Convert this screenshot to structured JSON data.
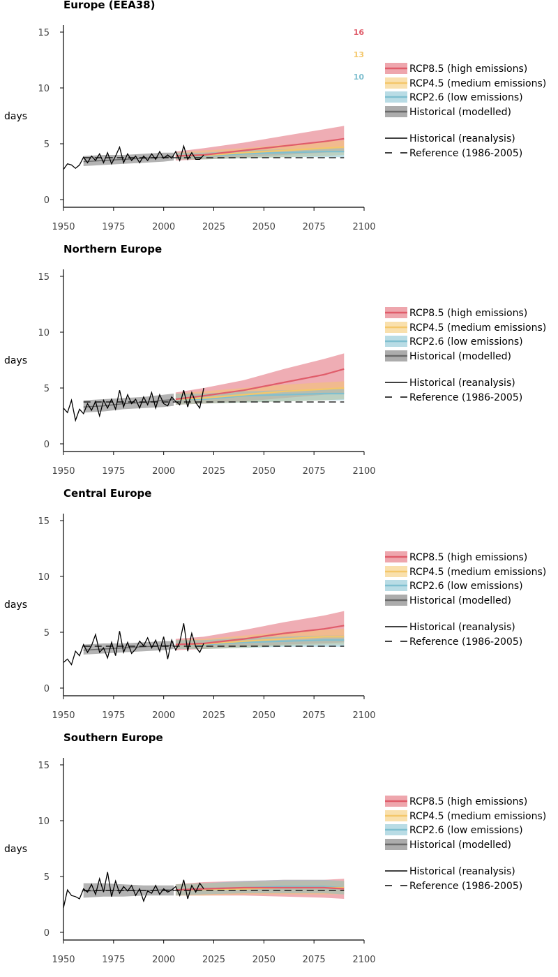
{
  "colors": {
    "rcp85": "#e05c6a",
    "rcp45": "#f4c76a",
    "rcp26": "#7fbfcf",
    "historical_model": "#808080",
    "reanalysis": "#000000"
  },
  "annotations": [
    {
      "text": "16",
      "color": "#e05c6a"
    },
    {
      "text": "13",
      "color": "#f4c76a"
    },
    {
      "text": "10",
      "color": "#7fbfcf"
    }
  ],
  "legend": [
    {
      "key": "rcp85",
      "label": "RCP8.5 (high emissions)",
      "kind": "band"
    },
    {
      "key": "rcp45",
      "label": "RCP4.5 (medium emissions)",
      "kind": "band"
    },
    {
      "key": "rcp26",
      "label": "RCP2.6 (low emissions)",
      "kind": "band"
    },
    {
      "key": "historical_model",
      "label": "Historical (modelled)",
      "kind": "band"
    },
    {
      "key": "reanalysis",
      "label": "Historical (reanalysis)",
      "kind": "line"
    },
    {
      "key": "reference",
      "label": "Reference (1986-2005)",
      "kind": "dash"
    }
  ],
  "chart_data": [
    {
      "type": "line",
      "title": "Europe (EEA38)",
      "ylabel": "days",
      "xlim": [
        1950,
        2100
      ],
      "ylim": [
        0,
        15
      ],
      "xticks": [
        "1950",
        "1975",
        "2000",
        "2025",
        "2050",
        "2075",
        "2100"
      ],
      "yticks": [
        "0",
        "5",
        "10",
        "15"
      ],
      "reference": 3.75,
      "historical_model": {
        "x": [
          1960,
          1970,
          1980,
          1990,
          2000,
          2005
        ],
        "mean": [
          3.4,
          3.5,
          3.6,
          3.7,
          3.8,
          3.85
        ],
        "low": [
          3.0,
          3.1,
          3.2,
          3.3,
          3.4,
          3.5
        ],
        "high": [
          3.9,
          4.0,
          4.0,
          4.1,
          4.2,
          4.2
        ]
      },
      "projections": [
        {
          "key": "rcp85",
          "x": [
            2006,
            2020,
            2040,
            2060,
            2080,
            2090
          ],
          "mean": [
            3.9,
            4.0,
            4.4,
            4.8,
            5.2,
            5.45
          ],
          "low": [
            3.5,
            3.6,
            3.8,
            4.0,
            4.2,
            4.3
          ],
          "high": [
            4.3,
            4.6,
            5.1,
            5.7,
            6.3,
            6.6
          ]
        },
        {
          "key": "rcp45",
          "x": [
            2006,
            2020,
            2040,
            2060,
            2080,
            2090
          ],
          "mean": [
            3.9,
            3.95,
            4.2,
            4.4,
            4.6,
            4.7
          ],
          "low": [
            3.6,
            3.6,
            3.7,
            3.8,
            3.9,
            4.0
          ],
          "high": [
            4.2,
            4.4,
            4.6,
            4.9,
            5.2,
            5.3
          ]
        },
        {
          "key": "rcp26",
          "x": [
            2006,
            2020,
            2040,
            2060,
            2080,
            2090
          ],
          "mean": [
            3.9,
            3.9,
            4.1,
            4.2,
            4.3,
            4.3
          ],
          "low": [
            3.6,
            3.6,
            3.7,
            3.8,
            3.8,
            3.8
          ],
          "high": [
            4.2,
            4.2,
            4.4,
            4.5,
            4.6,
            4.6
          ]
        }
      ],
      "reanalysis": {
        "x": [
          1950,
          1952,
          1954,
          1956,
          1958,
          1960,
          1962,
          1964,
          1966,
          1968,
          1970,
          1972,
          1974,
          1976,
          1978,
          1980,
          1982,
          1984,
          1986,
          1988,
          1990,
          1992,
          1994,
          1996,
          1998,
          2000,
          2002,
          2004,
          2006,
          2008,
          2010,
          2012,
          2014,
          2016,
          2018,
          2020
        ],
        "y": [
          2.7,
          3.2,
          3.1,
          2.8,
          3.1,
          3.8,
          3.3,
          3.9,
          3.5,
          4.1,
          3.3,
          4.2,
          3.2,
          3.9,
          4.7,
          3.3,
          4.1,
          3.5,
          3.9,
          3.3,
          3.9,
          3.5,
          4.1,
          3.6,
          4.3,
          3.7,
          4.0,
          3.7,
          4.3,
          3.5,
          4.8,
          3.6,
          4.2,
          3.6,
          3.6,
          4.0
        ]
      }
    },
    {
      "type": "line",
      "title": "Northern Europe",
      "ylabel": "days",
      "xlim": [
        1950,
        2100
      ],
      "ylim": [
        0,
        15
      ],
      "xticks": [
        "1950",
        "1975",
        "2000",
        "2025",
        "2050",
        "2075",
        "2100"
      ],
      "yticks": [
        "0",
        "5",
        "10",
        "15"
      ],
      "reference": 3.75,
      "historical_model": {
        "x": [
          1960,
          1970,
          1980,
          1990,
          2000,
          2005
        ],
        "mean": [
          3.3,
          3.4,
          3.6,
          3.7,
          3.9,
          3.95
        ],
        "low": [
          2.8,
          2.9,
          3.1,
          3.2,
          3.3,
          3.4
        ],
        "high": [
          3.9,
          4.0,
          4.1,
          4.2,
          4.4,
          4.5
        ]
      },
      "projections": [
        {
          "key": "rcp85",
          "x": [
            2006,
            2020,
            2040,
            2060,
            2080,
            2090
          ],
          "mean": [
            4.0,
            4.3,
            4.8,
            5.5,
            6.2,
            6.7
          ],
          "low": [
            3.5,
            3.6,
            3.8,
            4.1,
            4.4,
            4.5
          ],
          "high": [
            4.6,
            5.0,
            5.7,
            6.7,
            7.6,
            8.1
          ]
        },
        {
          "key": "rcp45",
          "x": [
            2006,
            2020,
            2040,
            2060,
            2080,
            2090
          ],
          "mean": [
            4.0,
            4.1,
            4.4,
            4.7,
            4.9,
            5.0
          ],
          "low": [
            3.5,
            3.6,
            3.7,
            3.8,
            3.9,
            4.0
          ],
          "high": [
            4.5,
            4.7,
            5.0,
            5.3,
            5.5,
            5.6
          ]
        },
        {
          "key": "rcp26",
          "x": [
            2006,
            2020,
            2040,
            2060,
            2080,
            2090
          ],
          "mean": [
            4.0,
            4.0,
            4.3,
            4.4,
            4.5,
            4.5
          ],
          "low": [
            3.5,
            3.6,
            3.7,
            3.8,
            3.9,
            3.9
          ],
          "high": [
            4.5,
            4.5,
            4.7,
            4.8,
            4.9,
            4.9
          ]
        }
      ],
      "reanalysis": {
        "x": [
          1950,
          1952,
          1954,
          1956,
          1958,
          1960,
          1962,
          1964,
          1966,
          1968,
          1970,
          1972,
          1974,
          1976,
          1978,
          1980,
          1982,
          1984,
          1986,
          1988,
          1990,
          1992,
          1994,
          1996,
          1998,
          2000,
          2002,
          2004,
          2006,
          2008,
          2010,
          2012,
          2014,
          2016,
          2018,
          2020
        ],
        "y": [
          3.2,
          2.8,
          3.9,
          2.1,
          3.1,
          2.7,
          3.6,
          3.0,
          3.8,
          2.5,
          3.9,
          3.2,
          4.0,
          3.1,
          4.8,
          3.3,
          4.4,
          3.6,
          4.0,
          3.2,
          4.2,
          3.5,
          4.6,
          3.2,
          4.4,
          3.6,
          3.4,
          4.2,
          3.8,
          3.5,
          4.8,
          3.3,
          4.6,
          3.7,
          3.2,
          5.0
        ]
      }
    },
    {
      "type": "line",
      "title": "Central Europe",
      "ylabel": "days",
      "xlim": [
        1950,
        2100
      ],
      "ylim": [
        0,
        15
      ],
      "xticks": [
        "1950",
        "1975",
        "2000",
        "2025",
        "2050",
        "2075",
        "2100"
      ],
      "yticks": [
        "0",
        "5",
        "10",
        "15"
      ],
      "reference": 3.75,
      "historical_model": {
        "x": [
          1960,
          1970,
          1980,
          1990,
          2000,
          2005
        ],
        "mean": [
          3.4,
          3.5,
          3.6,
          3.7,
          3.8,
          3.85
        ],
        "low": [
          3.0,
          3.1,
          3.2,
          3.3,
          3.4,
          3.5
        ],
        "high": [
          3.9,
          4.0,
          4.0,
          4.1,
          4.2,
          4.2
        ]
      },
      "projections": [
        {
          "key": "rcp85",
          "x": [
            2006,
            2020,
            2040,
            2060,
            2080,
            2090
          ],
          "mean": [
            3.9,
            4.0,
            4.4,
            4.9,
            5.3,
            5.6
          ],
          "low": [
            3.4,
            3.5,
            3.7,
            3.9,
            4.0,
            4.1
          ],
          "high": [
            4.4,
            4.6,
            5.2,
            5.9,
            6.5,
            6.9
          ]
        },
        {
          "key": "rcp45",
          "x": [
            2006,
            2020,
            2040,
            2060,
            2080,
            2090
          ],
          "mean": [
            3.9,
            3.95,
            4.2,
            4.4,
            4.6,
            4.6
          ],
          "low": [
            3.5,
            3.5,
            3.6,
            3.8,
            3.9,
            3.9
          ],
          "high": [
            4.3,
            4.4,
            4.7,
            5.0,
            5.2,
            5.3
          ]
        },
        {
          "key": "rcp26",
          "x": [
            2006,
            2020,
            2040,
            2060,
            2080,
            2090
          ],
          "mean": [
            3.9,
            3.9,
            4.1,
            4.2,
            4.3,
            4.3
          ],
          "low": [
            3.5,
            3.5,
            3.6,
            3.7,
            3.7,
            3.7
          ],
          "high": [
            4.3,
            4.3,
            4.5,
            4.6,
            4.7,
            4.7
          ]
        }
      ],
      "reanalysis": {
        "x": [
          1950,
          1952,
          1954,
          1956,
          1958,
          1960,
          1962,
          1964,
          1966,
          1968,
          1970,
          1972,
          1974,
          1976,
          1978,
          1980,
          1982,
          1984,
          1986,
          1988,
          1990,
          1992,
          1994,
          1996,
          1998,
          2000,
          2002,
          2004,
          2006,
          2008,
          2010,
          2012,
          2014,
          2016,
          2018,
          2020
        ],
        "y": [
          2.3,
          2.6,
          2.1,
          3.3,
          2.9,
          3.9,
          3.2,
          3.8,
          4.8,
          3.2,
          3.6,
          2.7,
          4.1,
          2.9,
          5.1,
          3.2,
          4.1,
          3.1,
          3.5,
          4.2,
          3.8,
          4.5,
          3.6,
          4.3,
          3.3,
          4.6,
          2.6,
          4.3,
          3.4,
          4.1,
          5.8,
          3.3,
          4.9,
          3.7,
          3.2,
          4.0
        ]
      }
    },
    {
      "type": "line",
      "title": "Southern Europe",
      "ylabel": "days",
      "xlim": [
        1950,
        2100
      ],
      "ylim": [
        0,
        15
      ],
      "xticks": [
        "1950",
        "1975",
        "2000",
        "2025",
        "2050",
        "2075",
        "2100"
      ],
      "yticks": [
        "0",
        "5",
        "10",
        "15"
      ],
      "reference": 3.75,
      "historical_model": {
        "x": [
          1960,
          1970,
          1980,
          1990,
          2000,
          2005
        ],
        "mean": [
          3.7,
          3.75,
          3.75,
          3.75,
          3.8,
          3.8
        ],
        "low": [
          3.1,
          3.2,
          3.2,
          3.3,
          3.3,
          3.3
        ],
        "high": [
          4.4,
          4.4,
          4.3,
          4.2,
          4.2,
          4.2
        ]
      },
      "projections": [
        {
          "key": "rcp85",
          "x": [
            2006,
            2020,
            2040,
            2060,
            2080,
            2090
          ],
          "mean": [
            3.8,
            3.9,
            4.0,
            4.0,
            4.0,
            3.9
          ],
          "low": [
            3.3,
            3.3,
            3.3,
            3.2,
            3.1,
            3.0
          ],
          "high": [
            4.3,
            4.5,
            4.6,
            4.7,
            4.7,
            4.8
          ]
        },
        {
          "key": "rcp45",
          "x": [
            2006,
            2020,
            2040,
            2060,
            2080,
            2090
          ],
          "mean": [
            3.8,
            3.85,
            3.9,
            4.0,
            4.0,
            4.0
          ],
          "low": [
            3.3,
            3.3,
            3.4,
            3.4,
            3.4,
            3.4
          ],
          "high": [
            4.3,
            4.4,
            4.5,
            4.6,
            4.6,
            4.6
          ]
        },
        {
          "key": "rcp26",
          "x": [
            2006,
            2020,
            2040,
            2060,
            2080,
            2090
          ],
          "mean": [
            3.8,
            3.9,
            4.0,
            4.1,
            4.1,
            4.0
          ],
          "low": [
            3.3,
            3.4,
            3.5,
            3.5,
            3.5,
            3.4
          ],
          "high": [
            4.3,
            4.4,
            4.6,
            4.7,
            4.7,
            4.6
          ]
        }
      ],
      "reanalysis": {
        "x": [
          1950,
          1952,
          1954,
          1956,
          1958,
          1960,
          1962,
          1964,
          1966,
          1968,
          1970,
          1972,
          1974,
          1976,
          1978,
          1980,
          1982,
          1984,
          1986,
          1988,
          1990,
          1992,
          1994,
          1996,
          1998,
          2000,
          2002,
          2004,
          2006,
          2008,
          2010,
          2012,
          2014,
          2016,
          2018,
          2020
        ],
        "y": [
          2.2,
          3.8,
          3.3,
          3.2,
          3.0,
          3.9,
          3.6,
          4.3,
          3.4,
          4.8,
          3.6,
          5.4,
          3.2,
          4.6,
          3.5,
          4.1,
          3.7,
          4.2,
          3.3,
          3.9,
          2.8,
          3.7,
          3.5,
          4.2,
          3.4,
          3.9,
          3.6,
          3.8,
          4.1,
          3.3,
          4.7,
          3.0,
          4.2,
          3.6,
          4.4,
          3.9
        ]
      }
    }
  ]
}
